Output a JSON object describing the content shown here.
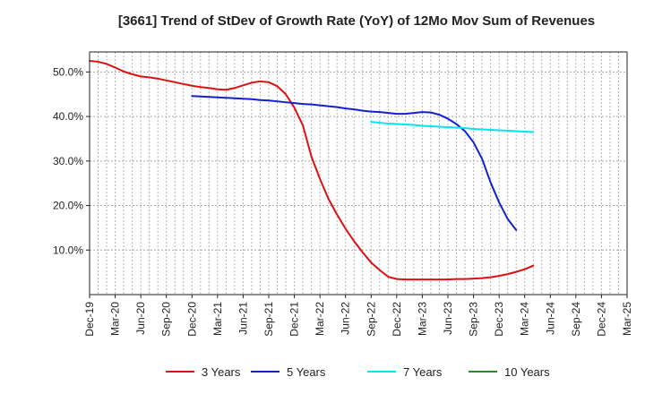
{
  "chart_data": {
    "type": "line",
    "title": "[3661]  Trend of StDev of Growth Rate (YoY) of 12Mo Mov Sum of Revenues",
    "xlabel": "",
    "ylabel": "",
    "ylim": [
      0.0,
      0.545
    ],
    "x_ticks": [
      "Dec-19",
      "Mar-20",
      "Jun-20",
      "Sep-20",
      "Dec-20",
      "Mar-21",
      "Jun-21",
      "Sep-21",
      "Dec-21",
      "Mar-22",
      "Jun-22",
      "Sep-22",
      "Dec-22",
      "Mar-23",
      "Jun-23",
      "Sep-23",
      "Dec-23",
      "Mar-24",
      "Jun-24",
      "Sep-24",
      "Dec-24",
      "Mar-25"
    ],
    "y_ticks": [
      {
        "value": 0.1,
        "label": "10.0%"
      },
      {
        "value": 0.2,
        "label": "20.0%"
      },
      {
        "value": 0.3,
        "label": "30.0%"
      },
      {
        "value": 0.4,
        "label": "40.0%"
      },
      {
        "value": 0.5,
        "label": "50.0%"
      }
    ],
    "series": [
      {
        "name": "3 Years",
        "color": "#dd1111",
        "values": [
          {
            "t": 0,
            "v": 0.525
          },
          {
            "t": 1,
            "v": 0.523
          },
          {
            "t": 2,
            "v": 0.518
          },
          {
            "t": 3,
            "v": 0.51
          },
          {
            "t": 4,
            "v": 0.501
          },
          {
            "t": 5,
            "v": 0.495
          },
          {
            "t": 6,
            "v": 0.49
          },
          {
            "t": 7,
            "v": 0.488
          },
          {
            "t": 8,
            "v": 0.485
          },
          {
            "t": 9,
            "v": 0.481
          },
          {
            "t": 10,
            "v": 0.477
          },
          {
            "t": 11,
            "v": 0.473
          },
          {
            "t": 12,
            "v": 0.469
          },
          {
            "t": 13,
            "v": 0.466
          },
          {
            "t": 14,
            "v": 0.464
          },
          {
            "t": 15,
            "v": 0.461
          },
          {
            "t": 16,
            "v": 0.46
          },
          {
            "t": 17,
            "v": 0.464
          },
          {
            "t": 18,
            "v": 0.47
          },
          {
            "t": 19,
            "v": 0.476
          },
          {
            "t": 20,
            "v": 0.479
          },
          {
            "t": 21,
            "v": 0.477
          },
          {
            "t": 22,
            "v": 0.468
          },
          {
            "t": 23,
            "v": 0.45
          },
          {
            "t": 24,
            "v": 0.42
          },
          {
            "t": 25,
            "v": 0.38
          },
          {
            "t": 26,
            "v": 0.31
          },
          {
            "t": 27,
            "v": 0.26
          },
          {
            "t": 28,
            "v": 0.215
          },
          {
            "t": 29,
            "v": 0.18
          },
          {
            "t": 30,
            "v": 0.148
          },
          {
            "t": 31,
            "v": 0.12
          },
          {
            "t": 32,
            "v": 0.095
          },
          {
            "t": 33,
            "v": 0.072
          },
          {
            "t": 34,
            "v": 0.055
          },
          {
            "t": 35,
            "v": 0.04
          },
          {
            "t": 36,
            "v": 0.035
          },
          {
            "t": 37,
            "v": 0.034
          },
          {
            "t": 38,
            "v": 0.034
          },
          {
            "t": 39,
            "v": 0.034
          },
          {
            "t": 40,
            "v": 0.034
          },
          {
            "t": 41,
            "v": 0.034
          },
          {
            "t": 42,
            "v": 0.034
          },
          {
            "t": 43,
            "v": 0.035
          },
          {
            "t": 44,
            "v": 0.035
          },
          {
            "t": 45,
            "v": 0.036
          },
          {
            "t": 46,
            "v": 0.037
          },
          {
            "t": 47,
            "v": 0.039
          },
          {
            "t": 48,
            "v": 0.042
          },
          {
            "t": 49,
            "v": 0.046
          },
          {
            "t": 50,
            "v": 0.051
          },
          {
            "t": 51,
            "v": 0.057
          },
          {
            "t": 52,
            "v": 0.065
          }
        ]
      },
      {
        "name": "5 Years",
        "color": "#1122cc",
        "values": [
          {
            "t": 12,
            "v": 0.446
          },
          {
            "t": 13,
            "v": 0.445
          },
          {
            "t": 14,
            "v": 0.444
          },
          {
            "t": 15,
            "v": 0.443
          },
          {
            "t": 16,
            "v": 0.442
          },
          {
            "t": 17,
            "v": 0.441
          },
          {
            "t": 18,
            "v": 0.44
          },
          {
            "t": 19,
            "v": 0.439
          },
          {
            "t": 20,
            "v": 0.437
          },
          {
            "t": 21,
            "v": 0.436
          },
          {
            "t": 22,
            "v": 0.434
          },
          {
            "t": 23,
            "v": 0.432
          },
          {
            "t": 24,
            "v": 0.43
          },
          {
            "t": 25,
            "v": 0.428
          },
          {
            "t": 26,
            "v": 0.427
          },
          {
            "t": 27,
            "v": 0.425
          },
          {
            "t": 28,
            "v": 0.423
          },
          {
            "t": 29,
            "v": 0.421
          },
          {
            "t": 30,
            "v": 0.418
          },
          {
            "t": 31,
            "v": 0.416
          },
          {
            "t": 32,
            "v": 0.413
          },
          {
            "t": 33,
            "v": 0.411
          },
          {
            "t": 34,
            "v": 0.41
          },
          {
            "t": 35,
            "v": 0.408
          },
          {
            "t": 36,
            "v": 0.406
          },
          {
            "t": 37,
            "v": 0.406
          },
          {
            "t": 38,
            "v": 0.408
          },
          {
            "t": 39,
            "v": 0.41
          },
          {
            "t": 40,
            "v": 0.409
          },
          {
            "t": 41,
            "v": 0.404
          },
          {
            "t": 42,
            "v": 0.395
          },
          {
            "t": 43,
            "v": 0.383
          },
          {
            "t": 44,
            "v": 0.367
          },
          {
            "t": 45,
            "v": 0.342
          },
          {
            "t": 46,
            "v": 0.305
          },
          {
            "t": 47,
            "v": 0.252
          },
          {
            "t": 48,
            "v": 0.207
          },
          {
            "t": 49,
            "v": 0.17
          },
          {
            "t": 50,
            "v": 0.145
          }
        ]
      },
      {
        "name": "7 Years",
        "color": "#00e5ee",
        "values": [
          {
            "t": 33,
            "v": 0.388
          },
          {
            "t": 34,
            "v": 0.386
          },
          {
            "t": 35,
            "v": 0.384
          },
          {
            "t": 36,
            "v": 0.383
          },
          {
            "t": 37,
            "v": 0.382
          },
          {
            "t": 38,
            "v": 0.381
          },
          {
            "t": 39,
            "v": 0.379
          },
          {
            "t": 40,
            "v": 0.378
          },
          {
            "t": 41,
            "v": 0.377
          },
          {
            "t": 42,
            "v": 0.376
          },
          {
            "t": 43,
            "v": 0.375
          },
          {
            "t": 44,
            "v": 0.374
          },
          {
            "t": 45,
            "v": 0.372
          },
          {
            "t": 46,
            "v": 0.371
          },
          {
            "t": 47,
            "v": 0.37
          },
          {
            "t": 48,
            "v": 0.369
          },
          {
            "t": 49,
            "v": 0.368
          },
          {
            "t": 50,
            "v": 0.367
          },
          {
            "t": 51,
            "v": 0.366
          },
          {
            "t": 52,
            "v": 0.365
          }
        ]
      },
      {
        "name": "10 Years",
        "color": "#228B22",
        "values": []
      }
    ],
    "legend_position": "bottom"
  }
}
